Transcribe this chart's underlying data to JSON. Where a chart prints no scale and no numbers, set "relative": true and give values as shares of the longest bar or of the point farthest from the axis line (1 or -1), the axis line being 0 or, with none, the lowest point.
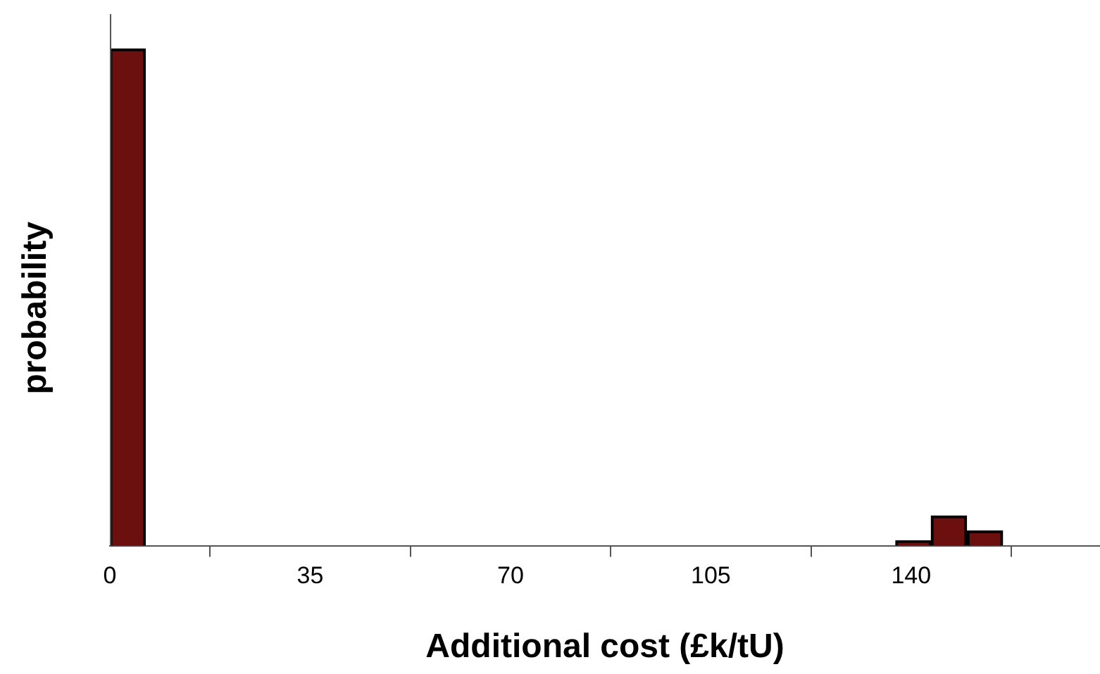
{
  "chart_data": {
    "type": "bar",
    "xlabel": "Additional cost (£k/tU)",
    "ylabel": "probability",
    "relative": true,
    "x": [
      3.1,
      9.4,
      15.6,
      21.8,
      28.1,
      34.3,
      40.6,
      46.8,
      53,
      59.3,
      65.5,
      71.8,
      78,
      84.2,
      90.5,
      96.7,
      103,
      109.2,
      115.4,
      121.7,
      127.9,
      134.2,
      140.4,
      146.6,
      152.9
    ],
    "values": [
      1,
      0,
      0,
      0,
      0,
      0,
      0,
      0,
      0,
      0,
      0,
      0,
      0,
      0,
      0,
      0,
      0,
      0,
      0,
      0,
      0,
      0,
      0.01,
      0.06,
      0.03
    ],
    "color": "#6b0f0f",
    "xlim": [
      0,
      173
    ],
    "xticks": [
      0,
      35,
      70,
      105,
      140
    ],
    "grid": false,
    "legend": false
  }
}
